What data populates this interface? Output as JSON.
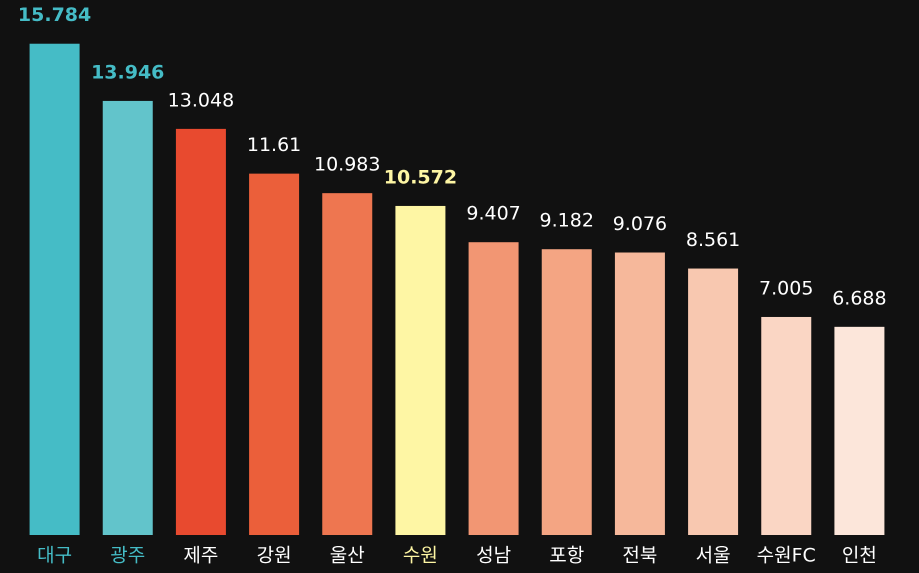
{
  "chart_data": {
    "type": "bar",
    "categories": [
      "대구",
      "광주",
      "제주",
      "강원",
      "울산",
      "수원",
      "성남",
      "포항",
      "전북",
      "서울",
      "수원FC",
      "인천"
    ],
    "values": [
      15.784,
      13.946,
      13.048,
      11.61,
      10.983,
      10.572,
      9.407,
      9.182,
      9.076,
      8.561,
      7.005,
      6.688
    ],
    "colors": [
      "#45bcc6",
      "#62c4cb",
      "#e84a2f",
      "#eb5f3a",
      "#ee7650",
      "#fef6a4",
      "#f29673",
      "#f4a583",
      "#f6b89b",
      "#f8c8b0",
      "#fad6c4",
      "#fce6da"
    ],
    "label_colors": [
      "#45bcc6",
      "#45bcc6",
      "#ffffff",
      "#ffffff",
      "#ffffff",
      "#fef6a4",
      "#ffffff",
      "#ffffff",
      "#ffffff",
      "#ffffff",
      "#ffffff",
      "#ffffff"
    ],
    "ylim": [
      0,
      16
    ]
  }
}
